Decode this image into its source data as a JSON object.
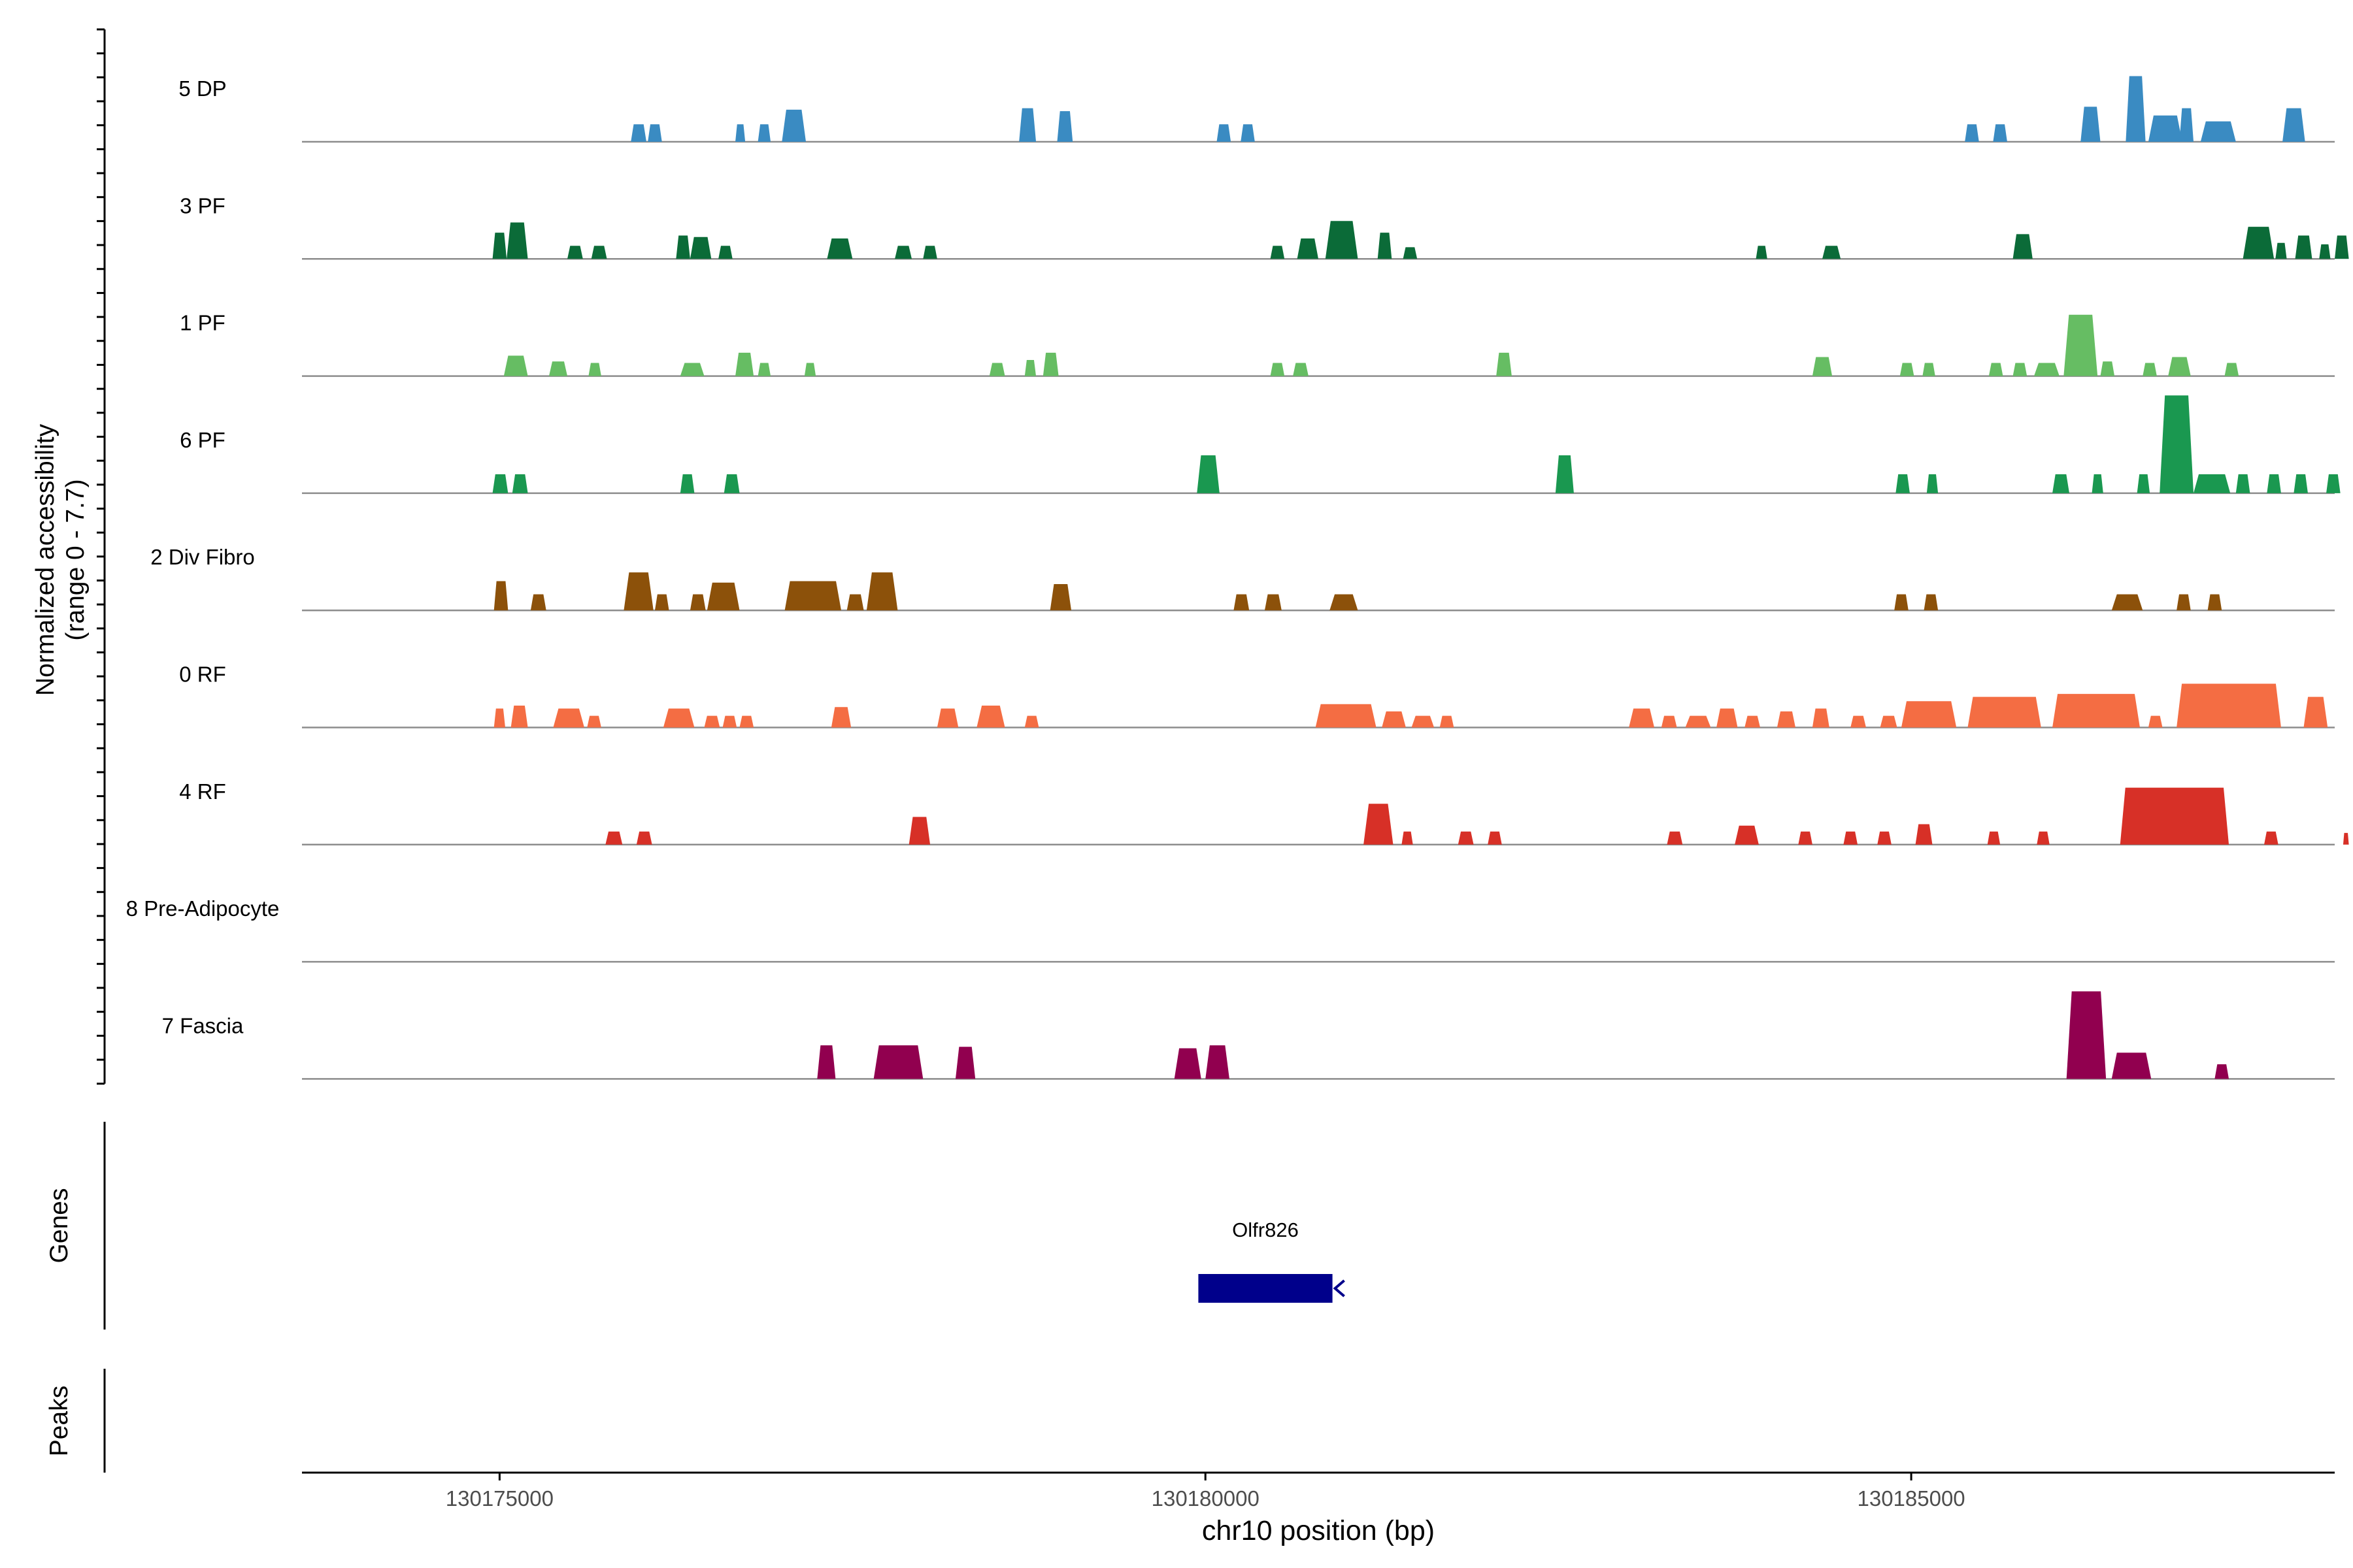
{
  "chart_data": {
    "type": "area",
    "title": "",
    "ylabel_line1": "Normalized accessibility",
    "ylabel_line2": "(range 0 - 7.7)",
    "xlabel": "chr10 position (bp)",
    "genes_label": "Genes",
    "peaks_label": "Peaks",
    "xlim": [
      130173600,
      130188000
    ],
    "ylim": [
      0,
      7.7
    ],
    "x_ticks": [
      {
        "value": 130175000,
        "label": "130175000"
      },
      {
        "value": 130180000,
        "label": "130180000"
      },
      {
        "value": 130185000,
        "label": "130185000"
      }
    ],
    "genes": [
      {
        "name": "Olfr826",
        "start": 130179950,
        "end": 130180900,
        "strand": "-",
        "color": "#00008B"
      }
    ],
    "tracks": [
      {
        "name": "5 DP",
        "color": "#3A8BC2",
        "peaks": [
          [
            130175930,
            130176040,
            1.2
          ],
          [
            130176050,
            130176150,
            1.2
          ],
          [
            130176670,
            130176740,
            1.2
          ],
          [
            130176830,
            130176920,
            1.2
          ],
          [
            130177000,
            130177170,
            2.2
          ],
          [
            130178680,
            130178800,
            2.3
          ],
          [
            130178950,
            130179060,
            2.1
          ],
          [
            130180080,
            130180180,
            1.2
          ],
          [
            130180250,
            130180350,
            1.2
          ],
          [
            130185380,
            130185480,
            1.2
          ],
          [
            130185580,
            130185680,
            1.2
          ],
          [
            130186200,
            130186340,
            2.4
          ],
          [
            130186520,
            130186660,
            4.5
          ],
          [
            130186680,
            130186920,
            1.8
          ],
          [
            130186900,
            130187000,
            2.3
          ],
          [
            130187050,
            130187300,
            1.4
          ],
          [
            130187630,
            130187790,
            2.3
          ]
        ]
      },
      {
        "name": "3 PF",
        "color": "#0B6B38",
        "peaks": [
          [
            130174950,
            130175050,
            1.8
          ],
          [
            130175050,
            130175200,
            2.5
          ],
          [
            130175480,
            130175590,
            0.9
          ],
          [
            130175650,
            130175760,
            0.9
          ],
          [
            130176250,
            130176350,
            1.6
          ],
          [
            130176350,
            130176500,
            1.5
          ],
          [
            130176550,
            130176650,
            0.9
          ],
          [
            130177320,
            130177500,
            1.4
          ],
          [
            130177800,
            130177920,
            0.9
          ],
          [
            130178000,
            130178100,
            0.9
          ],
          [
            130180460,
            130180560,
            0.9
          ],
          [
            130180650,
            130180800,
            1.4
          ],
          [
            130180850,
            130181080,
            2.6
          ],
          [
            130181220,
            130181320,
            1.8
          ],
          [
            130181400,
            130181500,
            0.8
          ],
          [
            130183900,
            130183980,
            0.9
          ],
          [
            130184370,
            130184500,
            0.9
          ],
          [
            130185720,
            130185860,
            1.7
          ],
          [
            130187350,
            130187570,
            2.2
          ],
          [
            130187580,
            130187660,
            1.1
          ],
          [
            130187720,
            130187840,
            1.6
          ],
          [
            130187890,
            130187970,
            1.0
          ],
          [
            130188000,
            130188100,
            1.6
          ]
        ]
      },
      {
        "name": "1 PF",
        "color": "#66BD63",
        "peaks": [
          [
            130175030,
            130175200,
            1.4
          ],
          [
            130175350,
            130175480,
            1.0
          ],
          [
            130175630,
            130175720,
            0.9
          ],
          [
            130176280,
            130176450,
            0.9
          ],
          [
            130176670,
            130176800,
            1.6
          ],
          [
            130176830,
            130176920,
            0.9
          ],
          [
            130177160,
            130177240,
            0.9
          ],
          [
            130178470,
            130178580,
            0.9
          ],
          [
            130178720,
            130178800,
            1.1
          ],
          [
            130178850,
            130178960,
            1.6
          ],
          [
            130180460,
            130180560,
            0.9
          ],
          [
            130180620,
            130180730,
            0.9
          ],
          [
            130182060,
            130182170,
            1.6
          ],
          [
            130184300,
            130184440,
            1.3
          ],
          [
            130184920,
            130185020,
            0.9
          ],
          [
            130185080,
            130185170,
            0.9
          ],
          [
            130185550,
            130185650,
            0.9
          ],
          [
            130185720,
            130185820,
            0.9
          ],
          [
            130185870,
            130186050,
            0.9
          ],
          [
            130186080,
            130186320,
            4.2
          ],
          [
            130186340,
            130186440,
            1.0
          ],
          [
            130186640,
            130186740,
            0.9
          ],
          [
            130186820,
            130186980,
            1.3
          ],
          [
            130187220,
            130187320,
            0.9
          ]
        ]
      },
      {
        "name": "6 PF",
        "color": "#1A9850",
        "peaks": [
          [
            130174950,
            130175060,
            1.3
          ],
          [
            130175090,
            130175200,
            1.3
          ],
          [
            130176280,
            130176380,
            1.3
          ],
          [
            130176590,
            130176700,
            1.3
          ],
          [
            130179940,
            130180100,
            2.6
          ],
          [
            130182480,
            130182610,
            2.6
          ],
          [
            130184890,
            130184990,
            1.3
          ],
          [
            130185110,
            130185190,
            1.3
          ],
          [
            130186000,
            130186120,
            1.3
          ],
          [
            130186280,
            130186360,
            1.3
          ],
          [
            130186600,
            130186690,
            1.3
          ],
          [
            130186760,
            130187000,
            6.7
          ],
          [
            130187000,
            130187260,
            1.3
          ],
          [
            130187300,
            130187400,
            1.3
          ],
          [
            130187520,
            130187620,
            1.3
          ],
          [
            130187710,
            130187810,
            1.3
          ],
          [
            130187940,
            130188040,
            1.3
          ]
        ]
      },
      {
        "name": "2 Div Fibro",
        "color": "#8C510A",
        "peaks": [
          [
            130174960,
            130175060,
            2.0
          ],
          [
            130175220,
            130175330,
            1.1
          ],
          [
            130175880,
            130176090,
            2.6
          ],
          [
            130176100,
            130176200,
            1.1
          ],
          [
            130176350,
            130176460,
            1.1
          ],
          [
            130176470,
            130176700,
            1.9
          ],
          [
            130177020,
            130177420,
            2.0
          ],
          [
            130177460,
            130177580,
            1.1
          ],
          [
            130177600,
            130177820,
            2.6
          ],
          [
            130178900,
            130179050,
            1.8
          ],
          [
            130180200,
            130180310,
            1.1
          ],
          [
            130180420,
            130180540,
            1.1
          ],
          [
            130180880,
            130181080,
            1.1
          ],
          [
            130184880,
            130184980,
            1.1
          ],
          [
            130185090,
            130185190,
            1.1
          ],
          [
            130186420,
            130186640,
            1.1
          ],
          [
            130186880,
            130186980,
            1.1
          ],
          [
            130187100,
            130187200,
            1.1
          ]
        ]
      },
      {
        "name": "0 RF",
        "color": "#F46D43",
        "peaks": [
          [
            130174960,
            130175040,
            1.3
          ],
          [
            130175080,
            130175200,
            1.5
          ],
          [
            130175380,
            130175600,
            1.3
          ],
          [
            130175620,
            130175720,
            0.8
          ],
          [
            130176160,
            130176380,
            1.3
          ],
          [
            130176450,
            130176560,
            0.8
          ],
          [
            130176580,
            130176680,
            0.8
          ],
          [
            130176700,
            130176800,
            0.8
          ],
          [
            130177350,
            130177490,
            1.4
          ],
          [
            130178100,
            130178250,
            1.3
          ],
          [
            130178380,
            130178580,
            1.5
          ],
          [
            130178720,
            130178820,
            0.8
          ],
          [
            130180780,
            130181210,
            1.6
          ],
          [
            130181250,
            130181420,
            1.1
          ],
          [
            130181460,
            130181620,
            0.8
          ],
          [
            130181660,
            130181760,
            0.8
          ],
          [
            130183000,
            130183180,
            1.3
          ],
          [
            130183230,
            130183340,
            0.8
          ],
          [
            130183400,
            130183580,
            0.8
          ],
          [
            130183620,
            130183770,
            1.3
          ],
          [
            130183820,
            130183930,
            0.8
          ],
          [
            130184050,
            130184180,
            1.1
          ],
          [
            130184300,
            130184420,
            1.3
          ],
          [
            130184570,
            130184680,
            0.8
          ],
          [
            130184780,
            130184900,
            0.8
          ],
          [
            130184930,
            130185320,
            1.8
          ],
          [
            130185400,
            130185920,
            2.1
          ],
          [
            130186000,
            130186620,
            2.3
          ],
          [
            130186680,
            130186780,
            0.8
          ],
          [
            130186880,
            130187620,
            3.0
          ],
          [
            130187780,
            130187950,
            2.1
          ]
        ]
      },
      {
        "name": "4 RF",
        "color": "#D73027",
        "peaks": [
          [
            130175750,
            130175870,
            0.9
          ],
          [
            130175970,
            130176080,
            0.9
          ],
          [
            130177900,
            130178050,
            1.9
          ],
          [
            130181120,
            130181330,
            2.8
          ],
          [
            130181390,
            130181470,
            0.9
          ],
          [
            130181790,
            130181900,
            0.9
          ],
          [
            130182000,
            130182100,
            0.9
          ],
          [
            130183270,
            130183380,
            0.9
          ],
          [
            130183750,
            130183920,
            1.3
          ],
          [
            130184200,
            130184300,
            0.9
          ],
          [
            130184520,
            130184620,
            0.9
          ],
          [
            130184760,
            130184860,
            0.9
          ],
          [
            130185030,
            130185150,
            1.4
          ],
          [
            130185540,
            130185630,
            0.9
          ],
          [
            130185890,
            130185980,
            0.9
          ],
          [
            130186480,
            130187250,
            3.9
          ],
          [
            130187500,
            130187600,
            0.9
          ],
          [
            130188060,
            130188100,
            0.8
          ]
        ]
      },
      {
        "name": "8 Pre-Adipocyte",
        "color": "#9E0142",
        "peaks": []
      },
      {
        "name": "7 Fascia",
        "color": "#91004F",
        "peaks": [
          [
            130177250,
            130177380,
            2.3
          ],
          [
            130177650,
            130178000,
            2.3
          ],
          [
            130178230,
            130178370,
            2.2
          ],
          [
            130179780,
            130179970,
            2.1
          ],
          [
            130180000,
            130180170,
            2.3
          ],
          [
            130186100,
            130186380,
            6.0
          ],
          [
            130186420,
            130186700,
            1.8
          ],
          [
            130187150,
            130187250,
            1.0
          ]
        ]
      }
    ]
  }
}
